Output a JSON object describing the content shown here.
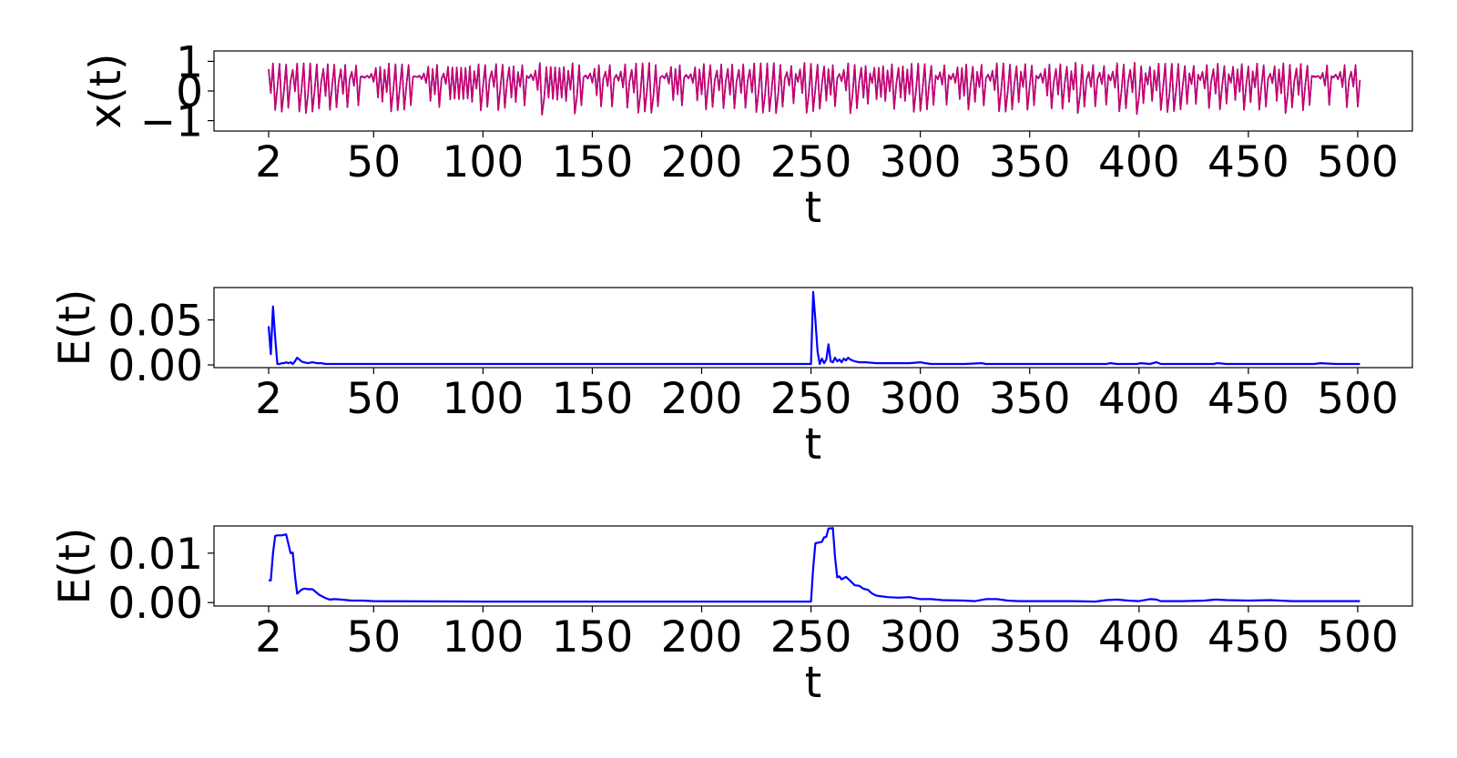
{
  "chart_data": [
    {
      "type": "line",
      "xlabel": "t",
      "ylabel": "x(t)",
      "xlim": [
        -23,
        525
      ],
      "ylim": [
        -1.35,
        1.35
      ],
      "xticks": [
        "2",
        "50",
        "100",
        "150",
        "200",
        "250",
        "300",
        "350",
        "400",
        "450",
        "500"
      ],
      "yticks": [
        "1",
        "0",
        "−1"
      ],
      "grid": false,
      "legend": "none",
      "series": [
        {
          "color": "#0000ff",
          "shape": "chaotic-oscillation",
          "range": [
            -1,
            1
          ],
          "x_start": 2,
          "x_end": 501
        },
        {
          "color": "#cc0066",
          "shape": "chaotic-oscillation-overlay",
          "range": [
            -1,
            1
          ],
          "x_start": 2,
          "x_end": 501
        }
      ]
    },
    {
      "type": "line",
      "xlabel": "t",
      "ylabel": "E(t)",
      "xlim": [
        -23,
        525
      ],
      "ylim": [
        -0.003,
        0.086
      ],
      "xticks": [
        "2",
        "50",
        "100",
        "150",
        "200",
        "250",
        "300",
        "350",
        "400",
        "450",
        "500"
      ],
      "yticks": [
        "0.05",
        "0.00"
      ],
      "grid": false,
      "legend": "none",
      "series": [
        {
          "color": "#0000ff",
          "x": [
            2,
            3,
            4,
            5,
            6,
            7,
            8,
            9,
            10,
            11,
            12,
            13,
            14,
            15,
            16,
            17,
            18,
            20,
            22,
            24,
            26,
            28,
            30,
            35,
            40,
            50,
            100,
            150,
            200,
            249,
            250,
            251,
            252,
            253,
            254,
            255,
            256,
            257,
            258,
            259,
            260,
            261,
            262,
            263,
            264,
            265,
            266,
            267,
            268,
            270,
            272,
            275,
            280,
            285,
            290,
            295,
            300,
            302,
            305,
            310,
            320,
            328,
            330,
            340,
            350,
            370,
            385,
            387,
            390,
            399,
            401,
            405,
            408,
            410,
            420,
            434,
            436,
            440,
            460,
            480,
            483,
            490,
            501
          ],
          "y": [
            0.043,
            0.012,
            0.065,
            0.03,
            0.001,
            0.001,
            0.002,
            0.002,
            0.003,
            0.002,
            0.003,
            0.001,
            0.004,
            0.008,
            0.006,
            0.004,
            0.003,
            0.002,
            0.003,
            0.002,
            0.002,
            0.001,
            0.001,
            0.001,
            0.001,
            0.001,
            0.001,
            0.001,
            0.001,
            0.001,
            0.001,
            0.081,
            0.05,
            0.015,
            0.001,
            0.007,
            0.002,
            0.006,
            0.023,
            0.004,
            0.003,
            0.008,
            0.004,
            0.006,
            0.003,
            0.007,
            0.005,
            0.008,
            0.006,
            0.004,
            0.003,
            0.003,
            0.002,
            0.002,
            0.002,
            0.002,
            0.003,
            0.002,
            0.001,
            0.001,
            0.001,
            0.002,
            0.001,
            0.001,
            0.001,
            0.001,
            0.001,
            0.002,
            0.001,
            0.001,
            0.002,
            0.001,
            0.003,
            0.001,
            0.001,
            0.001,
            0.002,
            0.001,
            0.001,
            0.001,
            0.002,
            0.001,
            0.001
          ]
        }
      ]
    },
    {
      "type": "line",
      "xlabel": "t",
      "ylabel": "E(t)",
      "xlim": [
        -23,
        525
      ],
      "ylim": [
        -0.0007,
        0.0155
      ],
      "xticks": [
        "2",
        "50",
        "100",
        "150",
        "200",
        "250",
        "300",
        "350",
        "400",
        "450",
        "500"
      ],
      "yticks": [
        "0.01",
        "0.00"
      ],
      "grid": false,
      "legend": "none",
      "series": [
        {
          "color": "#0000ff",
          "x": [
            2,
            3,
            4,
            5,
            6,
            8,
            10,
            12,
            13,
            14,
            15,
            16,
            17,
            18,
            19,
            20,
            22,
            25,
            28,
            30,
            32,
            35,
            40,
            45,
            50,
            100,
            150,
            200,
            250,
            251,
            252,
            253,
            255,
            256,
            257,
            258,
            259,
            260,
            261,
            262,
            263,
            264,
            266,
            268,
            270,
            272,
            274,
            276,
            278,
            280,
            285,
            290,
            295,
            300,
            305,
            310,
            320,
            325,
            330,
            335,
            340,
            345,
            350,
            360,
            370,
            380,
            385,
            390,
            395,
            400,
            405,
            408,
            410,
            420,
            430,
            435,
            440,
            450,
            460,
            470,
            480,
            490,
            501
          ],
          "y": [
            0.0045,
            0.0045,
            0.01,
            0.0135,
            0.0136,
            0.0136,
            0.0138,
            0.01,
            0.0101,
            0.0055,
            0.0018,
            0.0022,
            0.0026,
            0.0028,
            0.0028,
            0.0027,
            0.0027,
            0.0016,
            0.0009,
            0.0006,
            0.0007,
            0.0006,
            0.0004,
            0.0004,
            0.0003,
            0.0002,
            0.0002,
            0.0002,
            0.0002,
            0.007,
            0.012,
            0.0121,
            0.0123,
            0.0132,
            0.0133,
            0.015,
            0.015,
            0.0151,
            0.0092,
            0.0051,
            0.0053,
            0.0047,
            0.0052,
            0.0044,
            0.0035,
            0.0034,
            0.0028,
            0.0026,
            0.0018,
            0.0014,
            0.0011,
            0.001,
            0.0011,
            0.0007,
            0.0007,
            0.0005,
            0.0004,
            0.0003,
            0.0007,
            0.0007,
            0.0004,
            0.0003,
            0.0003,
            0.0003,
            0.0003,
            0.0002,
            0.0005,
            0.0006,
            0.0004,
            0.0003,
            0.0007,
            0.0006,
            0.0003,
            0.0003,
            0.0004,
            0.0006,
            0.0005,
            0.0004,
            0.0005,
            0.0003,
            0.0003,
            0.0003,
            0.0003
          ]
        }
      ]
    }
  ]
}
